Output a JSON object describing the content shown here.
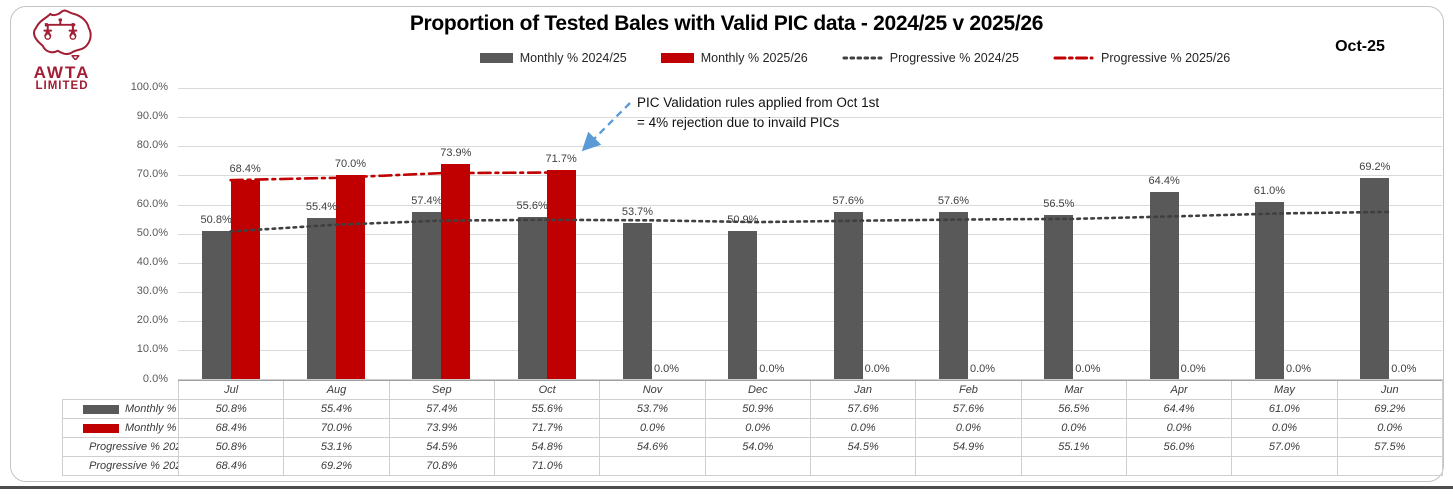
{
  "header": {
    "title": "Proportion of Tested Bales with Valid PIC data - 2024/25 v 2025/26",
    "date_badge": "Oct-25",
    "logo": {
      "line1": "AWTA",
      "line2": "LIMITED",
      "color": "#a21e35"
    }
  },
  "legend_items": [
    {
      "label": "Monthly % 2024/25",
      "swatch": "bar",
      "color": "#595959"
    },
    {
      "label": "Monthly % 2025/26",
      "swatch": "bar",
      "color": "#c00000"
    },
    {
      "label": "Progressive % 2024/25",
      "swatch": "dotted",
      "color": "#404040"
    },
    {
      "label": "Progressive % 2025/26",
      "swatch": "dashdot",
      "color": "#c00000"
    }
  ],
  "annotation": {
    "line1": "PIC Validation rules applied from Oct 1st",
    "line2": "= 4% rejection due to invaild PICs",
    "arrow_color": "#5b9bd5"
  },
  "chart_data": {
    "type": "bar",
    "title": "Proportion of Tested Bales with Valid PIC data - 2024/25 v 2025/26",
    "categories": [
      "Jul",
      "Aug",
      "Sep",
      "Oct",
      "Nov",
      "Dec",
      "Jan",
      "Feb",
      "Mar",
      "Apr",
      "May",
      "Jun"
    ],
    "series": [
      {
        "name": "Monthly % 2024/25",
        "type": "bar",
        "style": "solid",
        "color": "#595959",
        "values": [
          50.8,
          55.4,
          57.4,
          55.6,
          53.7,
          50.9,
          57.6,
          57.6,
          56.5,
          64.4,
          61.0,
          69.2
        ]
      },
      {
        "name": "Monthly % 2025/26",
        "type": "bar",
        "style": "solid",
        "color": "#c00000",
        "values": [
          68.4,
          70.0,
          73.9,
          71.7,
          0.0,
          0.0,
          0.0,
          0.0,
          0.0,
          0.0,
          0.0,
          0.0
        ]
      },
      {
        "name": "Progressive % 2024/25",
        "type": "line",
        "style": "dotted",
        "color": "#404040",
        "values": [
          50.8,
          53.1,
          54.5,
          54.8,
          54.6,
          54.0,
          54.5,
          54.9,
          55.1,
          56.0,
          57.0,
          57.5
        ]
      },
      {
        "name": "Progressive % 2025/26",
        "type": "line",
        "style": "dashdot",
        "color": "#c00000",
        "values": [
          68.4,
          69.2,
          70.8,
          71.0,
          null,
          null,
          null,
          null,
          null,
          null,
          null,
          null
        ]
      }
    ],
    "ylim": [
      0,
      100
    ],
    "ytick_step": 10,
    "ytick_format": "percent_1dp",
    "grid": true,
    "data_labels": "bars_only",
    "legend_position": "top",
    "data_table_shown": true
  }
}
